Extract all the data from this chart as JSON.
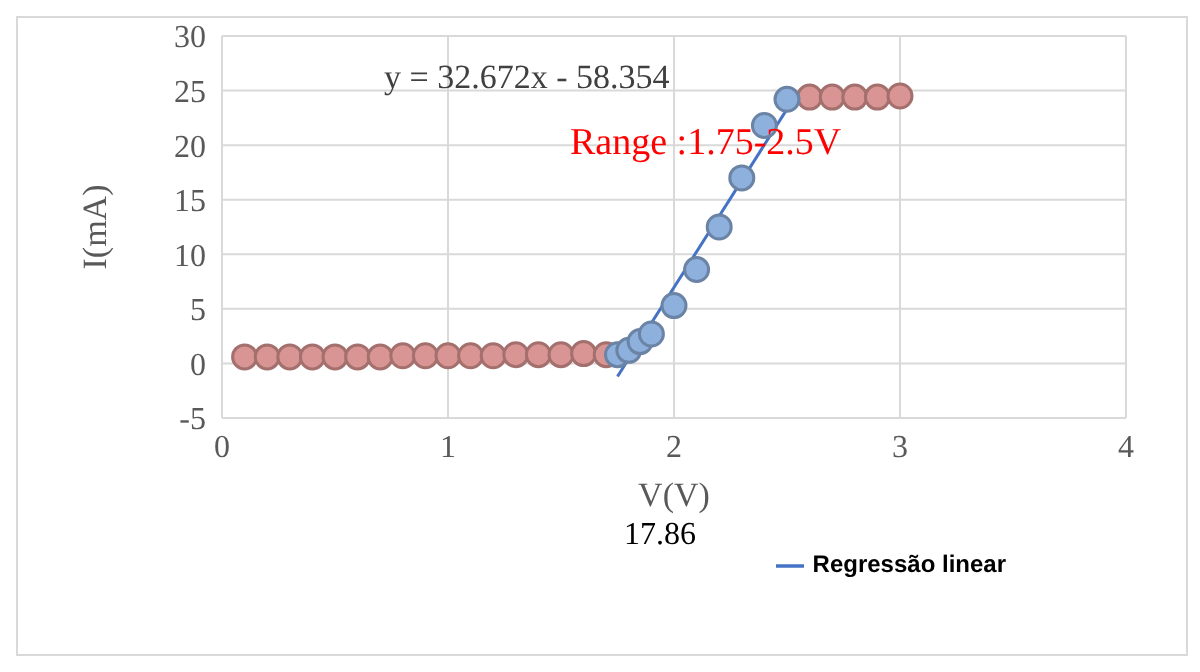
{
  "chart_data": {
    "type": "scatter",
    "xlabel": "V(V)",
    "ylabel": "I(mA)",
    "annotations": [
      "y = 32.672x - 58.354",
      "Range :1.75-2.5V",
      "17.86"
    ],
    "xlim": [
      0,
      4
    ],
    "xticks": [
      0,
      1,
      2,
      3,
      4
    ],
    "ylim": [
      -5,
      30
    ],
    "yticks": [
      -5,
      0,
      5,
      10,
      15,
      20,
      25,
      30
    ],
    "grid": true,
    "legend": "bottom right",
    "marker": "circle",
    "series": [
      {
        "color": "#d99593",
        "x": [
          0.1,
          0.2,
          0.3,
          0.4,
          0.5,
          0.6,
          0.7,
          0.8,
          0.9,
          1.0,
          1.1,
          1.2,
          1.3,
          1.4,
          1.5,
          1.6,
          1.7,
          2.6,
          2.7,
          2.8,
          2.9,
          3.0
        ],
        "values": [
          0.6,
          0.6,
          0.6,
          0.6,
          0.6,
          0.6,
          0.6,
          0.7,
          0.7,
          0.7,
          0.7,
          0.7,
          0.8,
          0.8,
          0.8,
          0.9,
          0.8,
          24.4,
          24.4,
          24.4,
          24.4,
          24.5
        ]
      },
      {
        "color": "#8eb0dd",
        "x": [
          1.75,
          1.8,
          1.85,
          1.9,
          2.0,
          2.1,
          2.2,
          2.3,
          2.4,
          2.5
        ],
        "values": [
          0.8,
          1.2,
          2.0,
          2.7,
          5.3,
          8.6,
          12.5,
          17.0,
          21.8,
          24.2
        ]
      },
      {
        "type": "line",
        "name": "Regressão linear",
        "color": "#4472c4",
        "marker": "none",
        "x": [
          1.75,
          2.5
        ],
        "values": [
          -1.2,
          23.3
        ]
      }
    ]
  }
}
